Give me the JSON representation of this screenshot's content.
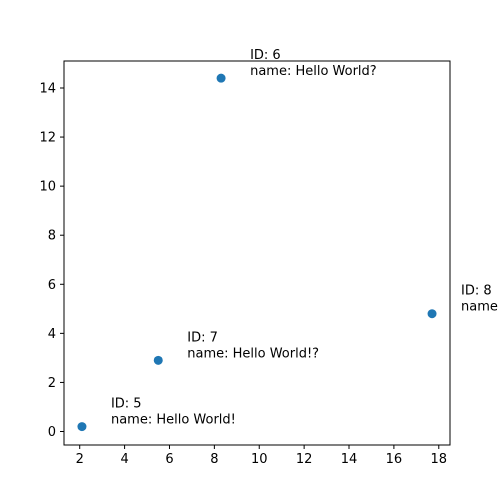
{
  "chart_data": {
    "type": "scatter",
    "title": "",
    "xlabel": "",
    "ylabel": "",
    "xlim": [
      1.3,
      18.5
    ],
    "ylim": [
      -0.55,
      15.1
    ],
    "xticks": [
      2,
      4,
      6,
      8,
      10,
      12,
      14,
      16,
      18
    ],
    "yticks": [
      0,
      2,
      4,
      6,
      8,
      10,
      12,
      14
    ],
    "grid": false,
    "marker_color": "#1f77b4",
    "points": [
      {
        "x": 2.1,
        "y": 0.2,
        "label_lines": [
          "ID: 5",
          "name:  Hello World!"
        ]
      },
      {
        "x": 5.5,
        "y": 2.9,
        "label_lines": [
          "ID: 7",
          "name:  Hello World!?"
        ]
      },
      {
        "x": 8.3,
        "y": 14.4,
        "label_lines": [
          "ID: 6",
          "name:  Hello World?"
        ]
      },
      {
        "x": 17.7,
        "y": 4.8,
        "label_lines": [
          "ID: 8",
          "name"
        ]
      }
    ]
  }
}
